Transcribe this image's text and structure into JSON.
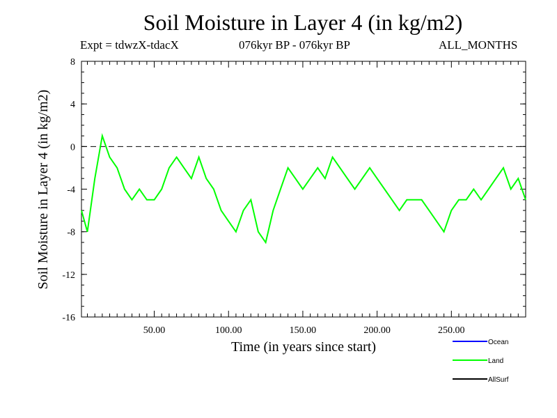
{
  "chart_data": {
    "type": "line",
    "title": "Soil Moisture in Layer 4 (in kg/m2)",
    "expt_label": "Expt = tdwzX-tdacX",
    "period_label": "076kyr BP - 076kyr BP",
    "months_label": "ALL_MONTHS",
    "xlabel": "Time (in years since start)",
    "ylabel": "Soil Moisture in Layer 4 (in kg/m2)",
    "xlim": [
      1,
      300
    ],
    "ylim": [
      -16,
      8
    ],
    "x_ticks": [
      50,
      100,
      150,
      200,
      250
    ],
    "x_tick_labels": [
      "50.00",
      "100.00",
      "150.00",
      "200.00",
      "250.00"
    ],
    "y_ticks": [
      -16,
      -12,
      -8,
      -4,
      0,
      4,
      8
    ],
    "y_tick_labels": [
      "-16",
      "-12",
      "-8",
      "-4",
      "0",
      "4",
      "8"
    ],
    "zero_line": true,
    "legend_position": "bottom-right",
    "series": [
      {
        "name": "Ocean",
        "color": "#0000ff",
        "values": []
      },
      {
        "name": "Land",
        "color": "#00ff00",
        "x": [
          1,
          5,
          10,
          15,
          20,
          25,
          30,
          35,
          40,
          45,
          50,
          55,
          60,
          65,
          70,
          75,
          80,
          85,
          90,
          95,
          100,
          105,
          110,
          115,
          120,
          125,
          130,
          135,
          140,
          145,
          150,
          155,
          160,
          165,
          170,
          175,
          180,
          185,
          190,
          195,
          200,
          205,
          210,
          215,
          220,
          225,
          230,
          235,
          240,
          245,
          250,
          255,
          260,
          265,
          270,
          275,
          280,
          285,
          290,
          295,
          300
        ],
        "values": [
          -6,
          -8,
          -3,
          1,
          -1,
          -2,
          -4,
          -5,
          -4,
          -5,
          -5,
          -4,
          -2,
          -1,
          -2,
          -3,
          -1,
          -3,
          -4,
          -6,
          -7,
          -8,
          -6,
          -5,
          -8,
          -9,
          -6,
          -4,
          -2,
          -3,
          -4,
          -3,
          -2,
          -3,
          -1,
          -2,
          -3,
          -4,
          -3,
          -2,
          -3,
          -4,
          -5,
          -6,
          -5,
          -5,
          -5,
          -6,
          -7,
          -8,
          -6,
          -5,
          -5,
          -4,
          -5,
          -4,
          -3,
          -2,
          -4,
          -3,
          -5
        ]
      },
      {
        "name": "AllSurf",
        "color": "#000000",
        "values": []
      }
    ]
  }
}
